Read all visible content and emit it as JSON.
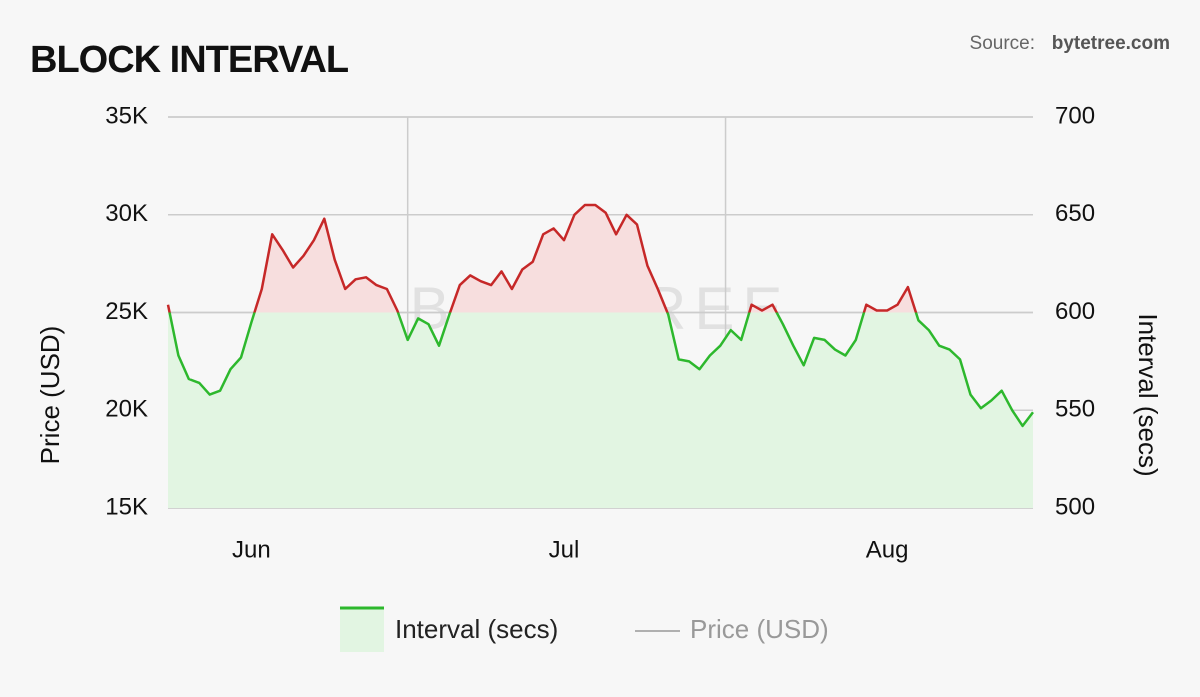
{
  "chart_data": {
    "type": "line",
    "title": "BLOCK INTERVAL",
    "source_label": "Source:",
    "source": "bytetree.com",
    "watermark": "BYTETREE",
    "ylabel": "Price (USD)",
    "y2label": "Interval (secs)",
    "ylim": [
      15000,
      35000
    ],
    "yticks": [
      {
        "value": 15000,
        "label": "15K"
      },
      {
        "value": 20000,
        "label": "20K"
      },
      {
        "value": 25000,
        "label": "25K"
      },
      {
        "value": 30000,
        "label": "30K"
      },
      {
        "value": 35000,
        "label": "35K"
      }
    ],
    "y2lim": [
      500,
      700
    ],
    "y2ticks": [
      500,
      550,
      600,
      650,
      700
    ],
    "grid": true,
    "legend": "bottom",
    "threshold": 600,
    "above_color": "#c62828",
    "above_fill": "#f7dede",
    "categories": [
      null,
      null,
      null,
      null,
      null,
      null,
      null,
      null,
      "Jun",
      null,
      null,
      null,
      null,
      null,
      null,
      null,
      null,
      null,
      null,
      null,
      null,
      null,
      null,
      null,
      null,
      null,
      null,
      null,
      null,
      null,
      null,
      null,
      null,
      null,
      null,
      null,
      null,
      null,
      "Jul",
      null,
      null,
      null,
      null,
      null,
      null,
      null,
      null,
      null,
      null,
      null,
      null,
      null,
      null,
      null,
      null,
      null,
      null,
      null,
      null,
      null,
      null,
      null,
      null,
      null,
      null,
      null,
      null,
      null,
      null,
      "Aug",
      null,
      null,
      null,
      null,
      null,
      null,
      null,
      null,
      null,
      null,
      null,
      null,
      null,
      null
    ],
    "series": [
      {
        "name": "Interval (secs)",
        "color": "#2db82d",
        "fill": "#e2f5e2",
        "axis": "y2",
        "values": [
          604,
          578,
          566,
          564,
          558,
          560,
          571,
          577,
          595,
          612,
          640,
          632,
          623,
          629,
          637,
          648,
          627,
          612,
          617,
          618,
          614,
          612,
          601,
          586,
          597,
          594,
          583,
          599,
          614,
          619,
          616,
          614,
          621,
          612,
          622,
          626,
          640,
          643,
          637,
          650,
          655,
          655,
          651,
          640,
          650,
          645,
          624,
          612,
          599,
          576,
          575,
          571,
          578,
          583,
          591,
          586,
          604,
          601,
          604,
          594,
          583,
          573,
          587,
          586,
          581,
          578,
          586,
          604,
          601,
          601,
          604,
          613,
          596,
          591,
          583,
          581,
          576,
          558,
          551,
          555,
          560,
          550,
          542,
          549
        ]
      },
      {
        "name": "Price (USD)",
        "color": "#999999",
        "hidden": true
      }
    ]
  }
}
